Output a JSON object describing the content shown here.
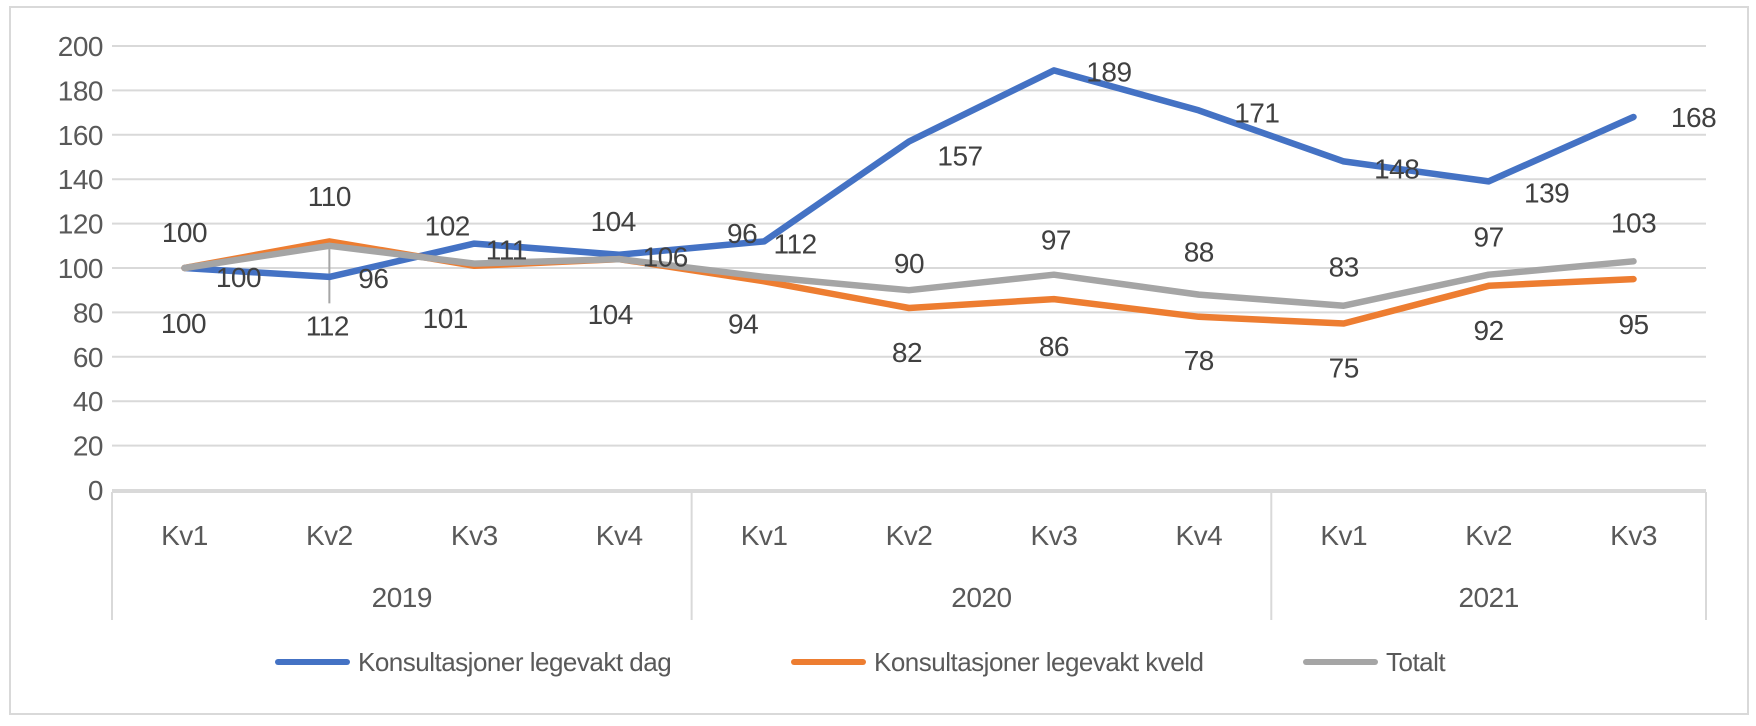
{
  "chart_data": {
    "type": "line",
    "title": "",
    "quarters": [
      "Kv1",
      "Kv2",
      "Kv3",
      "Kv4",
      "Kv1",
      "Kv2",
      "Kv3",
      "Kv4",
      "Kv1",
      "Kv2",
      "Kv3"
    ],
    "year_groups": [
      {
        "label": "2019",
        "span": 4
      },
      {
        "label": "2020",
        "span": 4
      },
      {
        "label": "2021",
        "span": 3
      }
    ],
    "series": [
      {
        "name": "Konsultasjoner legevakt dag",
        "color": "#4472C4",
        "values": [
          100,
          96,
          111,
          106,
          112,
          157,
          189,
          171,
          148,
          139,
          168
        ]
      },
      {
        "name": "Konsultasjoner legevakt kveld",
        "color": "#ED7D31",
        "values": [
          100,
          112,
          101,
          104,
          94,
          82,
          86,
          78,
          75,
          92,
          95
        ]
      },
      {
        "name": "Totalt",
        "color": "#A5A5A5",
        "values": [
          100,
          110,
          102,
          104,
          96,
          90,
          97,
          88,
          83,
          97,
          103
        ]
      }
    ],
    "ylim": [
      0,
      200
    ],
    "ytick_step": 20,
    "grid": true,
    "legend_position": "bottom",
    "xlabel": "",
    "ylabel": "",
    "style_colors": {
      "gridline": "#D9D9D9",
      "axis_band": "#D9D9D9",
      "outer_border": "#D9D9D9",
      "axis_text": "#595959",
      "data_label_text": "#404040",
      "leader_line": "#A6A6A6",
      "background": "#FFFFFF"
    }
  }
}
